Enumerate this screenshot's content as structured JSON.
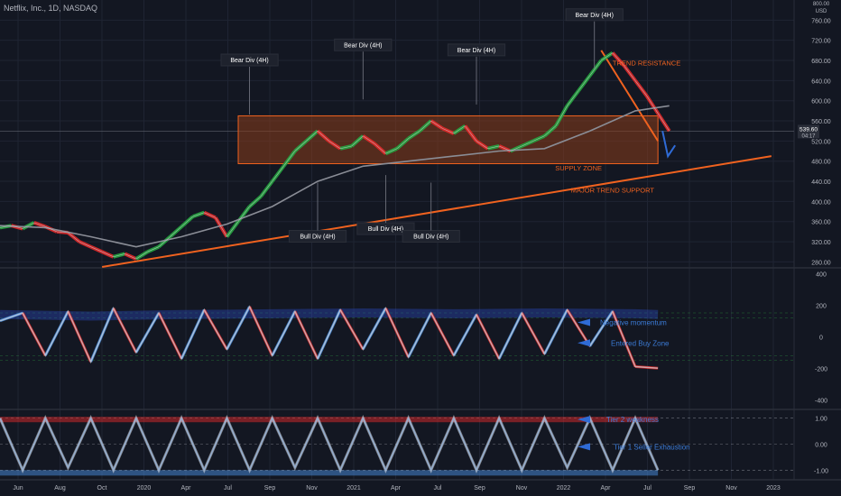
{
  "header": {
    "symbol_line": "Netflix, Inc., 1D, NASDAQ"
  },
  "colors": {
    "background": "#131722",
    "grid": "#1f2433",
    "bull": "#26a641",
    "bear": "#e02a2a",
    "ma": "#8a8d96",
    "trend": "#f0621f",
    "supply_fill": "#8a3d1a",
    "annotation_text": "#3b7bd6",
    "arrow_blue": "#2f6bd6",
    "axis_text": "#b2b5be"
  },
  "x_axis": {
    "labels": [
      "Jun",
      "Aug",
      "Oct",
      "2020",
      "Apr",
      "Jul",
      "Sep",
      "Nov",
      "2021",
      "Apr",
      "Jul",
      "Sep",
      "Nov",
      "2022",
      "Apr",
      "Jul",
      "Sep",
      "Nov",
      "2023"
    ]
  },
  "chart_data": [
    {
      "type": "line",
      "panel": "price",
      "title": "Netflix, Inc., 1D, NASDAQ",
      "y_unit": "USD",
      "y_ticks": [
        280,
        320,
        360,
        400,
        440,
        480,
        520,
        560,
        600,
        640,
        680,
        720,
        760
      ],
      "y_labels_top": [
        "800.00",
        "USD"
      ],
      "ylim": [
        270,
        800
      ],
      "last_price": "539.60",
      "countdown": "04:17",
      "series": [
        {
          "name": "",
          "points": [
            [
              0,
              348
            ],
            [
              5,
              352
            ],
            [
              10,
              346
            ],
            [
              15,
              358
            ],
            [
              20,
              350
            ],
            [
              25,
              340
            ],
            [
              30,
              338
            ],
            [
              35,
              320
            ],
            [
              40,
              310
            ],
            [
              45,
              300
            ],
            [
              50,
              290
            ],
            [
              55,
              296
            ],
            [
              60,
              286
            ],
            [
              65,
              300
            ],
            [
              70,
              310
            ],
            [
              75,
              330
            ],
            [
              80,
              350
            ],
            [
              85,
              370
            ],
            [
              90,
              378
            ],
            [
              95,
              368
            ],
            [
              100,
              330
            ],
            [
              105,
              360
            ],
            [
              110,
              390
            ],
            [
              115,
              410
            ],
            [
              120,
              440
            ],
            [
              125,
              470
            ],
            [
              130,
              500
            ],
            [
              135,
              520
            ],
            [
              140,
              540
            ],
            [
              145,
              520
            ],
            [
              150,
              505
            ],
            [
              155,
              510
            ],
            [
              160,
              530
            ],
            [
              165,
              515
            ],
            [
              170,
              495
            ],
            [
              175,
              505
            ],
            [
              180,
              525
            ],
            [
              185,
              540
            ],
            [
              190,
              560
            ],
            [
              195,
              545
            ],
            [
              200,
              535
            ],
            [
              205,
              550
            ],
            [
              210,
              520
            ],
            [
              215,
              505
            ],
            [
              220,
              510
            ],
            [
              225,
              500
            ],
            [
              230,
              510
            ],
            [
              235,
              520
            ],
            [
              240,
              530
            ],
            [
              245,
              550
            ],
            [
              250,
              590
            ],
            [
              255,
              620
            ],
            [
              260,
              650
            ],
            [
              265,
              680
            ],
            [
              270,
              695
            ],
            [
              275,
              670
            ],
            [
              280,
              640
            ],
            [
              285,
              610
            ],
            [
              290,
              575
            ],
            [
              295,
              540
            ]
          ]
        },
        {
          "name": "",
          "points": [
            [
              0,
              352
            ],
            [
              20,
              348
            ],
            [
              40,
              330
            ],
            [
              60,
              310
            ],
            [
              80,
              330
            ],
            [
              100,
              355
            ],
            [
              120,
              390
            ],
            [
              140,
              440
            ],
            [
              160,
              470
            ],
            [
              180,
              480
            ],
            [
              200,
              490
            ],
            [
              220,
              500
            ],
            [
              240,
              505
            ],
            [
              260,
              540
            ],
            [
              280,
              580
            ],
            [
              295,
              590
            ]
          ]
        }
      ],
      "annotations": [
        {
          "text": "Bear Div (4H)",
          "x": 110,
          "y": 680
        },
        {
          "text": "Bear Div (4H)",
          "x": 160,
          "y": 710
        },
        {
          "text": "Bear Div (4H)",
          "x": 210,
          "y": 700
        },
        {
          "text": "Bear Div (4H)",
          "x": 262,
          "y": 770
        },
        {
          "text": "Bull Div (4H)",
          "x": 140,
          "y": 330
        },
        {
          "text": "Bull Div (4H)",
          "x": 170,
          "y": 345
        },
        {
          "text": "Bull Div (4H)",
          "x": 190,
          "y": 330
        },
        {
          "text": "TREND RESISTANCE",
          "x": 285,
          "y": 670
        },
        {
          "text": "SUPPLY ZONE",
          "x": 255,
          "y": 462
        },
        {
          "text": "MAJOR TREND SUPPORT",
          "x": 270,
          "y": 418
        }
      ],
      "supply_zone": {
        "x_range": [
          105,
          290
        ],
        "y_range": [
          475,
          570
        ]
      },
      "trend_support": [
        [
          45,
          270
        ],
        [
          340,
          490
        ]
      ],
      "trend_resistance": [
        [
          265,
          700
        ],
        [
          290,
          520
        ]
      ]
    },
    {
      "type": "line",
      "panel": "momentum",
      "y_ticks": [
        400,
        200,
        0,
        -200,
        -400
      ],
      "ylim": [
        -450,
        430
      ],
      "series": [
        {
          "name": "",
          "points": [
            [
              0,
              100
            ],
            [
              10,
              150
            ],
            [
              20,
              -120
            ],
            [
              30,
              160
            ],
            [
              40,
              -160
            ],
            [
              50,
              180
            ],
            [
              60,
              -100
            ],
            [
              70,
              150
            ],
            [
              80,
              -140
            ],
            [
              90,
              170
            ],
            [
              100,
              -80
            ],
            [
              110,
              190
            ],
            [
              120,
              -120
            ],
            [
              130,
              160
            ],
            [
              140,
              -140
            ],
            [
              150,
              170
            ],
            [
              160,
              -80
            ],
            [
              170,
              180
            ],
            [
              180,
              -130
            ],
            [
              190,
              150
            ],
            [
              200,
              -120
            ],
            [
              210,
              140
            ],
            [
              220,
              -140
            ],
            [
              230,
              150
            ],
            [
              240,
              -110
            ],
            [
              250,
              170
            ],
            [
              260,
              -60
            ],
            [
              270,
              160
            ],
            [
              280,
              -190
            ],
            [
              290,
              -200
            ]
          ]
        },
        {
          "name": "",
          "points": [
            [
              0,
              140
            ],
            [
              40,
              130
            ],
            [
              80,
              140
            ],
            [
              120,
              145
            ],
            [
              160,
              150
            ],
            [
              200,
              145
            ],
            [
              240,
              150
            ],
            [
              280,
              145
            ],
            [
              290,
              140
            ]
          ]
        }
      ],
      "annotations": [
        {
          "text": "Negative momentum",
          "y": 90
        },
        {
          "text": "Entered Buy Zone",
          "y": -40
        }
      ]
    },
    {
      "type": "line",
      "panel": "oscillator",
      "y_ticks": [
        1.0,
        0.0,
        -1.0
      ],
      "ylim": [
        -1.3,
        1.3
      ],
      "series": [
        {
          "name": "",
          "points": [
            [
              0,
              1.0
            ],
            [
              10,
              -1.0
            ],
            [
              20,
              1.0
            ],
            [
              30,
              -0.9
            ],
            [
              40,
              1.0
            ],
            [
              50,
              -1.0
            ],
            [
              60,
              1.0
            ],
            [
              70,
              -1.0
            ],
            [
              80,
              1.0
            ],
            [
              90,
              -1.0
            ],
            [
              100,
              1.0
            ],
            [
              110,
              -1.0
            ],
            [
              120,
              1.0
            ],
            [
              130,
              -0.9
            ],
            [
              140,
              1.0
            ],
            [
              150,
              -1.0
            ],
            [
              160,
              1.0
            ],
            [
              170,
              -1.0
            ],
            [
              180,
              1.0
            ],
            [
              190,
              -1.0
            ],
            [
              200,
              1.0
            ],
            [
              210,
              -1.0
            ],
            [
              220,
              1.0
            ],
            [
              230,
              -1.0
            ],
            [
              240,
              1.0
            ],
            [
              250,
              -0.9
            ],
            [
              260,
              1.0
            ],
            [
              270,
              -1.0
            ],
            [
              280,
              1.0
            ],
            [
              290,
              -1.0
            ]
          ]
        }
      ],
      "annotations": [
        {
          "text": "Tier 2 weakness",
          "y": 0.95
        },
        {
          "text": "Tier 1 Seller Exhaustion",
          "y": -0.1
        }
      ]
    }
  ]
}
